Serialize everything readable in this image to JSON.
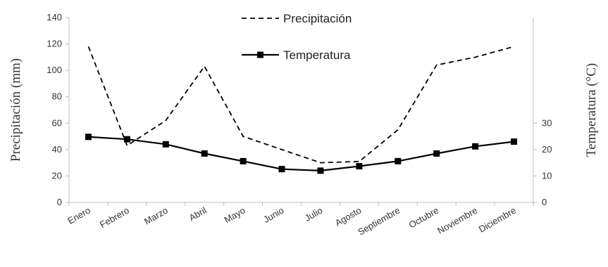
{
  "chart_data": {
    "type": "line",
    "categories": [
      "Enero",
      "Febrero",
      "Marzo",
      "Abril",
      "Mayo",
      "Junio",
      "Julio",
      "Agosto",
      "Septiembre",
      "Octubre",
      "Noviembre",
      "Diciembre"
    ],
    "series": [
      {
        "name": "Precipitación",
        "axis": "left",
        "style": "dashed",
        "values": [
          118,
          43,
          62,
          103,
          50,
          40,
          30,
          31,
          55,
          104,
          110,
          118
        ]
      },
      {
        "name": "Temperatura",
        "axis": "right",
        "style": "solid",
        "marker": "square",
        "values": [
          24.8,
          23.9,
          22.0,
          18.5,
          15.6,
          12.6,
          12.0,
          13.7,
          15.6,
          18.5,
          21.2,
          23.0
        ]
      }
    ],
    "ylabel": "Precipitación (mm)",
    "ylim": [
      0,
      140
    ],
    "yticks": [
      "0",
      "20",
      "40",
      "60",
      "80",
      "100",
      "120",
      "140"
    ],
    "y2label": "Temperatura (°C)",
    "y2lim": [
      0,
      70
    ],
    "y2ticks": [
      "0",
      "10",
      "20",
      "30"
    ],
    "legend_position": "top-center",
    "grid": false,
    "colors": {
      "lines": "#000000",
      "axes": "#bfbfbf",
      "text": "#333333"
    }
  }
}
